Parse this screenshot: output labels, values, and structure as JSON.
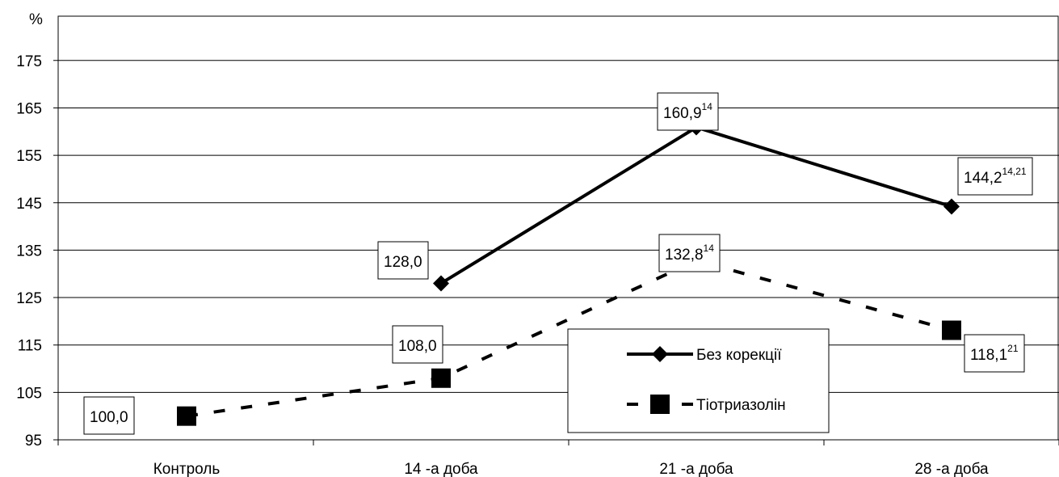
{
  "chart_data": {
    "type": "line",
    "ylabel": "%",
    "ylim": [
      95,
      175
    ],
    "yticks": [
      95,
      105,
      115,
      125,
      135,
      145,
      155,
      165,
      175
    ],
    "grid": true,
    "legend_position": "center-right",
    "categories": [
      "Контроль",
      "14 -а доба",
      "21 -а доба",
      "28 -а доба"
    ],
    "series": [
      {
        "name": "Без корекції",
        "style": "solid",
        "marker": "diamond",
        "values": [
          null,
          128.0,
          160.9,
          144.2
        ],
        "labels": [
          null,
          {
            "text": "128,0",
            "sup": ""
          },
          {
            "text": "160,9",
            "sup": "14"
          },
          {
            "text": "144,2",
            "sup": "14,21"
          }
        ]
      },
      {
        "name": "Тіотриазолін",
        "style": "dashed",
        "marker": "square",
        "values": [
          100.0,
          108.0,
          132.8,
          118.1
        ],
        "labels": [
          {
            "text": "100,0",
            "sup": ""
          },
          {
            "text": "108,0",
            "sup": ""
          },
          {
            "text": "132,8",
            "sup": "14"
          },
          {
            "text": "118,1",
            "sup": "21"
          }
        ]
      }
    ]
  },
  "colors": {
    "line": "#000000",
    "grid": "#000000",
    "background": "#ffffff"
  }
}
